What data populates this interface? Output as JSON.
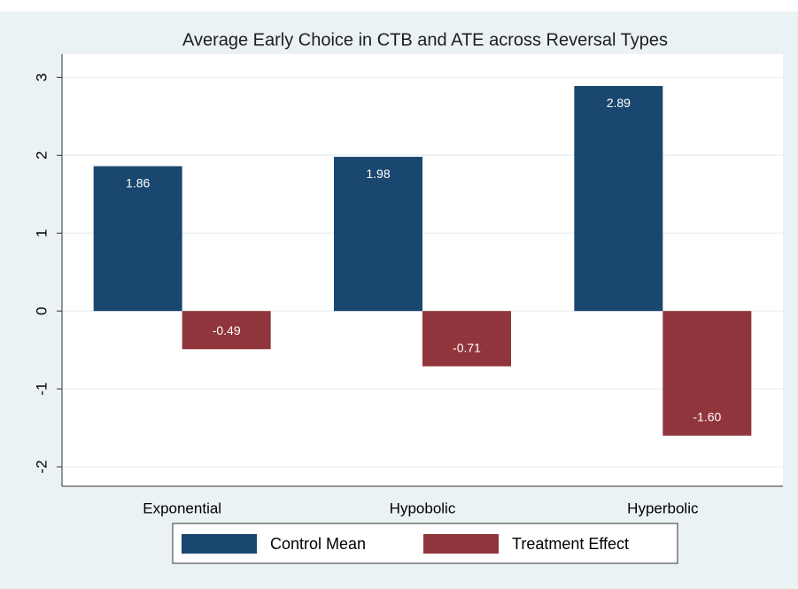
{
  "chart_data": {
    "type": "bar",
    "title": "Average Early Choice in CTB and ATE across Reversal Types",
    "categories": [
      "Exponential",
      "Hypobolic",
      "Hyperbolic"
    ],
    "series": [
      {
        "name": "Control Mean",
        "color": "#1a476f",
        "values": [
          1.86,
          1.98,
          2.89
        ],
        "value_labels": [
          "1.86",
          "1.98",
          "2.89"
        ]
      },
      {
        "name": "Treatment Effect",
        "color": "#90353b",
        "values": [
          -0.49,
          -0.71,
          -1.6
        ],
        "value_labels": [
          "-0.49",
          "-0.71",
          "-1.60"
        ]
      }
    ],
    "ylim": [
      -2.25,
      3.3
    ],
    "yticks": [
      -2,
      -1,
      0,
      1,
      2,
      3
    ],
    "grid": true,
    "legend": "bottom"
  }
}
